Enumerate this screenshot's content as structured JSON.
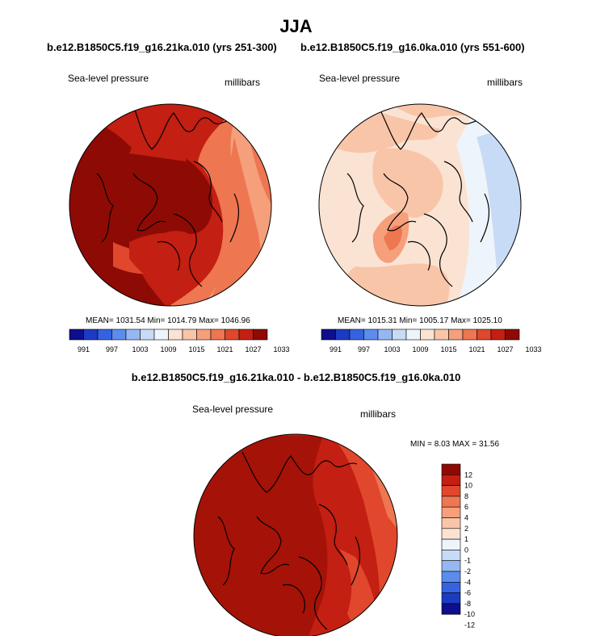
{
  "season": "JJA",
  "panels": [
    {
      "title": "b.e12.B1850C5.f19_g16.21ka.010 (yrs 251-300)",
      "variable": "Sea-level pressure",
      "units": "millibars",
      "stats": "MEAN= 1031.54  Min= 1014.79  Max= 1046.96"
    },
    {
      "title": "b.e12.B1850C5.f19_g16.0ka.010 (yrs 551-600)",
      "variable": "Sea-level pressure",
      "units": "millibars",
      "stats": "MEAN= 1015.31  Min= 1005.17  Max= 1025.10"
    },
    {
      "title": "b.e12.B1850C5.f19_g16.21ka.010 - b.e12.B1850C5.f19_g16.0ka.010",
      "variable": "Sea-level pressure",
      "units": "millibars",
      "stats": "MIN =   8.03 MAX =  31.56"
    }
  ],
  "colorbar_abs": {
    "colors": [
      "#0d0f8c",
      "#1c3ac2",
      "#3563e0",
      "#5d8cef",
      "#95b8f3",
      "#c7dbf6",
      "#eef4fb",
      "#fbe3d3",
      "#f9c5a8",
      "#f59f7b",
      "#ee7651",
      "#e0472c",
      "#c31f12",
      "#8e0b05"
    ],
    "tick_labels": [
      "991",
      "997",
      "1003",
      "1009",
      "1015",
      "1021",
      "1027",
      "1033"
    ]
  },
  "colorbar_diff": {
    "colors": [
      "#8e0b05",
      "#c31f12",
      "#e0472c",
      "#ee7651",
      "#f59f7b",
      "#f9c5a8",
      "#fbe3d3",
      "#eef4fb",
      "#c7dbf6",
      "#95b8f3",
      "#5d8cef",
      "#3563e0",
      "#1c3ac2",
      "#0d0f8c"
    ],
    "tick_labels": [
      "12",
      "10",
      "8",
      "6",
      "4",
      "2",
      "1",
      "0",
      "-1",
      "-2",
      "-4",
      "-6",
      "-8",
      "-10",
      "-12"
    ]
  },
  "chart_data": [
    {
      "type": "heatmap",
      "title": "b.e12.B1850C5.f19_g16.21ka.010 (yrs 251-300)",
      "variable": "Sea-level pressure",
      "units": "millibars",
      "mean": 1031.54,
      "min": 1014.79,
      "max": 1046.96,
      "levels": [
        991,
        994,
        997,
        1000,
        1003,
        1006,
        1009,
        1012,
        1015,
        1018,
        1021,
        1024,
        1027,
        1030,
        1033
      ]
    },
    {
      "type": "heatmap",
      "title": "b.e12.B1850C5.f19_g16.0ka.010 (yrs 551-600)",
      "variable": "Sea-level pressure",
      "units": "millibars",
      "mean": 1015.31,
      "min": 1005.17,
      "max": 1025.1,
      "levels": [
        991,
        994,
        997,
        1000,
        1003,
        1006,
        1009,
        1012,
        1015,
        1018,
        1021,
        1024,
        1027,
        1030,
        1033
      ]
    },
    {
      "type": "heatmap",
      "title": "b.e12.B1850C5.f19_g16.21ka.010 - b.e12.B1850C5.f19_g16.0ka.010",
      "variable": "Sea-level pressure",
      "units": "millibars",
      "min": 8.03,
      "max": 31.56,
      "levels": [
        -12,
        -10,
        -8,
        -6,
        -4,
        -2,
        -1,
        0,
        1,
        2,
        4,
        6,
        8,
        10,
        12
      ]
    }
  ]
}
